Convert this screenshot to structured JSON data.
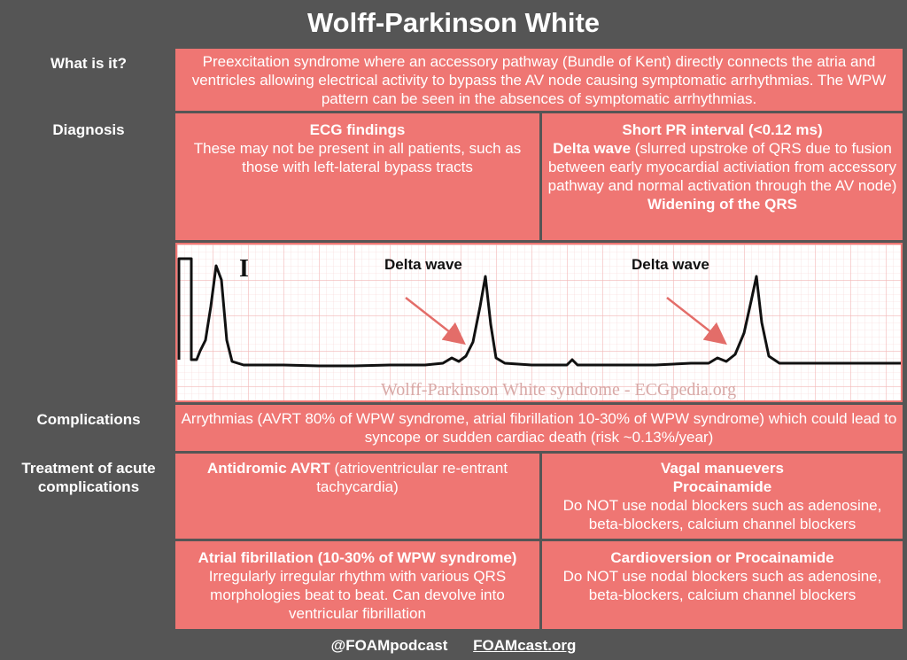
{
  "title": "Wolff-Parkinson White",
  "rows": {
    "what": {
      "label": "What is it?",
      "text": "Preexcitation syndrome where an accessory pathway (Bundle of Kent) directly connects the atria and ventricles allowing electrical activity to bypass the AV node causing symptomatic arrhythmias. The WPW pattern can be seen in the absences of symptomatic arrhythmias."
    },
    "diagnosis": {
      "label": "Diagnosis",
      "left_heading": "ECG findings",
      "left_text": "These may not be present in all patients, such as those with left-lateral bypass tracts",
      "right_pr": "Short PR interval (<0.12 ms)",
      "right_delta_bold": "Delta wave",
      "right_delta_text": " (slurred upstroke of QRS due to fusion between early myocardial activiation from accessory pathway and normal activation through the AV node)",
      "right_qrs": "Widening of the QRS"
    },
    "ecg": {
      "lead": "I",
      "delta_label_1": "Delta wave",
      "delta_label_2": "Delta wave",
      "watermark": "Wolff-Parkinson White syndrome - ECGpedia.org"
    },
    "complications": {
      "label": "Complications",
      "text": "Arrythmias (AVRT 80% of WPW syndrome, atrial fibrillation 10-30% of WPW syndrome) which could lead to syncope or sudden cardiac death (risk ~0.13%/year)"
    },
    "treatment": {
      "label": "Treatment of acute complications",
      "avrt_bold": "Antidromic AVRT",
      "avrt_text": " (atrioventricular re-entrant tachycardia)",
      "avrt_tx_1": "Vagal manuevers",
      "avrt_tx_2": "Procainamide",
      "avrt_tx_3": "Do NOT use nodal blockers such as adenosine, beta-blockers, calcium channel blockers",
      "af_heading": "Atrial fibrillation (10-30% of WPW syndrome)",
      "af_text": "Irregularly irregular rhythm with various QRS morphologies beat to beat. Can devolve into ventricular fibrillation",
      "af_tx_1": "Cardioversion or Procainamide",
      "af_tx_2": "Do NOT use nodal blockers such as adenosine, beta-blockers, calcium channel blockers"
    }
  },
  "footer": {
    "handle": "@FOAMpodcast",
    "site": "FOAMcast.org"
  },
  "colors": {
    "background": "#555555",
    "cell": "#ef7673",
    "text": "#ffffff",
    "ecg_grid": "#f2b8b6",
    "arrow": "#e36d69"
  }
}
